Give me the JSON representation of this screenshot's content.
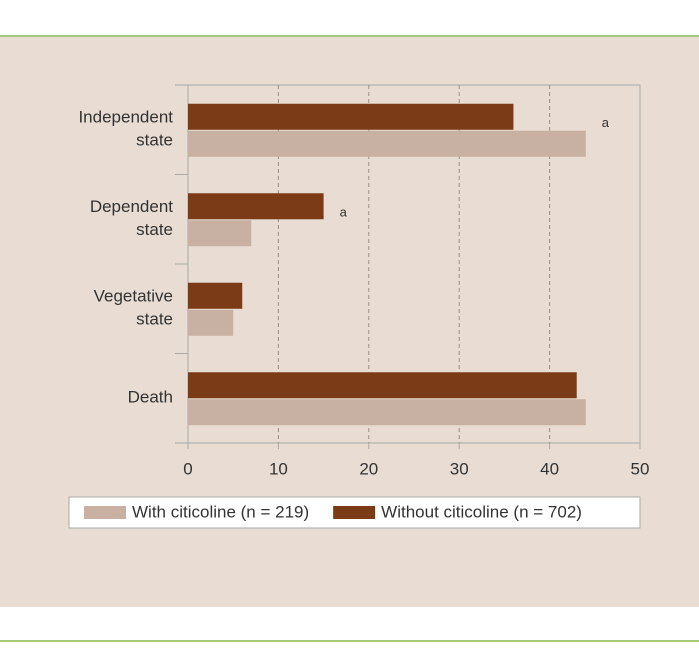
{
  "chart_data": {
    "type": "hbar",
    "categories": [
      "Independent state",
      "Dependent state",
      "Vegetative state",
      "Death"
    ],
    "series": [
      {
        "name": "Without citicoline (n = 702)",
        "color": "#7a3b16",
        "values": [
          36,
          15,
          6,
          43
        ]
      },
      {
        "name": "With citicoline (n = 219)",
        "color": "#c8b0a2",
        "values": [
          44,
          7,
          5,
          44
        ]
      }
    ],
    "annotations": [
      {
        "text": "a",
        "category": 0
      },
      {
        "text": "a",
        "category": 1
      }
    ],
    "xlim": [
      0,
      50
    ],
    "xticks": [
      0,
      10,
      20,
      30,
      40,
      50
    ],
    "grid": true
  }
}
